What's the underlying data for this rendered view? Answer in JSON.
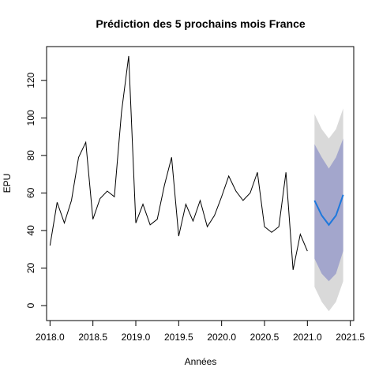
{
  "chart_data": {
    "type": "line",
    "title": "Prédiction des 5 prochains mois France",
    "xlabel": "Années",
    "ylabel": "EPU",
    "xlim": [
      2017.96,
      2021.54
    ],
    "ylim": [
      -8,
      138
    ],
    "xticks": [
      2018.0,
      2018.5,
      2019.0,
      2019.5,
      2020.0,
      2020.5,
      2021.0,
      2021.5
    ],
    "xtick_labels": [
      "2018.0",
      "2018.5",
      "2019.0",
      "2019.5",
      "2020.0",
      "2020.5",
      "2021.0",
      "2021.5"
    ],
    "yticks": [
      0,
      20,
      40,
      60,
      80,
      100,
      120
    ],
    "ytick_labels": [
      "0",
      "20",
      "40",
      "60",
      "80",
      "100",
      "120"
    ],
    "grid": false,
    "colors": {
      "observed": "#000000",
      "forecast": "#1e78dc",
      "band80": "#a3a6cc",
      "band95": "#d9d9d9"
    },
    "observed": {
      "x": [
        2018.0,
        2018.083,
        2018.167,
        2018.25,
        2018.333,
        2018.417,
        2018.5,
        2018.583,
        2018.667,
        2018.75,
        2018.833,
        2018.917,
        2019.0,
        2019.083,
        2019.167,
        2019.25,
        2019.333,
        2019.417,
        2019.5,
        2019.583,
        2019.667,
        2019.75,
        2019.833,
        2019.917,
        2020.0,
        2020.083,
        2020.167,
        2020.25,
        2020.333,
        2020.417,
        2020.5,
        2020.583,
        2020.667,
        2020.75,
        2020.833,
        2020.917,
        2021.0
      ],
      "y": [
        32,
        55,
        44,
        56,
        79,
        87,
        46,
        57,
        61,
        58,
        103,
        133,
        44,
        54,
        43,
        46,
        64,
        79,
        37,
        54,
        45,
        56,
        42,
        48,
        58,
        69,
        61,
        56,
        60,
        71,
        42,
        39,
        42,
        71,
        19,
        38,
        29
      ]
    },
    "forecast": {
      "x": [
        2021.083,
        2021.167,
        2021.25,
        2021.333,
        2021.417
      ],
      "mean": [
        56,
        48,
        43,
        48,
        59
      ],
      "lo80": [
        25,
        17,
        13,
        17,
        29
      ],
      "hi80": [
        86,
        79,
        73,
        79,
        89
      ],
      "lo95": [
        10,
        2,
        -3,
        2,
        13
      ],
      "hi95": [
        102,
        94,
        89,
        94,
        105
      ]
    }
  }
}
